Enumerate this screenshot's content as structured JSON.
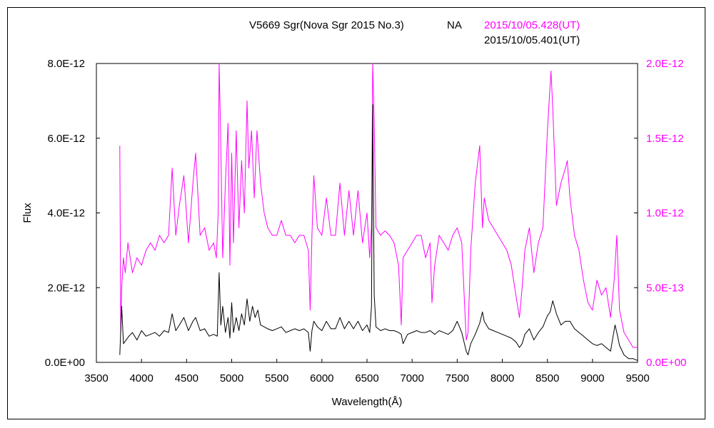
{
  "chart_data": {
    "type": "line",
    "title": "V5669 Sgr(Nova Sgr 2015 No.3)",
    "observer": "NA",
    "xlabel": "Wavelength(Å)",
    "ylabel": "Flux",
    "xlim": [
      3500,
      9500
    ],
    "ylim_left": [
      0,
      8e-12
    ],
    "ylim_right": [
      0,
      2e-12
    ],
    "x_ticks": [
      "3500",
      "4000",
      "4500",
      "5000",
      "5500",
      "6000",
      "6500",
      "7000",
      "7500",
      "8000",
      "8500",
      "9000",
      "9500"
    ],
    "y_ticks_left": [
      "0.0E+00",
      "2.0E-12",
      "4.0E-12",
      "6.0E-12",
      "8.0E-12"
    ],
    "y_ticks_right": [
      "0.0E+00",
      "5.0E-13",
      "1.0E-12",
      "1.5E-12",
      "2.0E-12"
    ],
    "grid": false,
    "colors": {
      "black": "#000000",
      "magenta": "#ff00ff"
    },
    "series": [
      {
        "name": "2015/10/05.428(UT)",
        "axis": "right",
        "color": "#ff00ff",
        "x": [
          3760,
          3770,
          3780,
          3800,
          3820,
          3850,
          3900,
          3950,
          4000,
          4050,
          4100,
          4150,
          4200,
          4250,
          4300,
          4340,
          4380,
          4420,
          4470,
          4520,
          4570,
          4600,
          4650,
          4700,
          4750,
          4800,
          4830,
          4850,
          4861,
          4875,
          4900,
          4930,
          4960,
          4980,
          5000,
          5020,
          5050,
          5080,
          5110,
          5140,
          5170,
          5190,
          5220,
          5250,
          5280,
          5320,
          5360,
          5400,
          5450,
          5500,
          5550,
          5600,
          5650,
          5700,
          5750,
          5800,
          5850,
          5870,
          5890,
          5910,
          5950,
          6000,
          6050,
          6100,
          6150,
          6200,
          6250,
          6300,
          6350,
          6400,
          6450,
          6500,
          6530,
          6550,
          6563,
          6580,
          6600,
          6650,
          6700,
          6750,
          6800,
          6850,
          6880,
          6900,
          6950,
          7000,
          7050,
          7100,
          7150,
          7200,
          7220,
          7250,
          7300,
          7350,
          7400,
          7450,
          7500,
          7550,
          7600,
          7620,
          7650,
          7700,
          7750,
          7780,
          7800,
          7850,
          7900,
          7950,
          8000,
          8050,
          8100,
          8150,
          8190,
          8220,
          8250,
          8300,
          8350,
          8400,
          8450,
          8500,
          8520,
          8540,
          8560,
          8600,
          8650,
          8700,
          8720,
          8750,
          8800,
          8850,
          8900,
          8950,
          9000,
          9050,
          9100,
          9150,
          9200,
          9240,
          9270,
          9300,
          9350,
          9400,
          9450,
          9500
        ],
        "y": [
          1.45e-12,
          2e-13,
          5e-13,
          7e-13,
          6e-13,
          8e-13,
          6e-13,
          7e-13,
          6.5e-13,
          7.5e-13,
          8e-13,
          7.5e-13,
          8.5e-13,
          8e-13,
          8.5e-13,
          1.3e-12,
          8.5e-13,
          1.05e-12,
          1.25e-12,
          8e-13,
          1.2e-12,
          1.4e-12,
          8.5e-13,
          9e-13,
          7.5e-13,
          8e-13,
          7e-13,
          1e-12,
          2e-12,
          1.6e-12,
          7e-13,
          1.2e-12,
          1.6e-12,
          6.5e-13,
          1.4e-12,
          8e-13,
          1.55e-12,
          9e-13,
          1.35e-12,
          1e-12,
          1.75e-12,
          1.3e-12,
          1.55e-12,
          1.1e-12,
          1.55e-12,
          1.2e-12,
          1e-12,
          9e-13,
          8.5e-13,
          8.5e-13,
          9.5e-13,
          8.5e-13,
          8.5e-13,
          8e-13,
          8.5e-13,
          8.5e-13,
          7.5e-13,
          3.5e-13,
          8.5e-13,
          1.25e-12,
          9e-13,
          8.5e-13,
          1.1e-12,
          8.5e-13,
          8.5e-13,
          1.2e-12,
          8.5e-13,
          1.15e-12,
          8.5e-13,
          1.15e-12,
          8e-13,
          1e-12,
          7e-13,
          9e-13,
          2e-12,
          1.6e-12,
          9e-13,
          8.5e-13,
          8.8e-13,
          8.5e-13,
          8e-13,
          6.5e-13,
          2.5e-13,
          7e-13,
          7.5e-13,
          8e-13,
          8.5e-13,
          8.5e-13,
          7e-13,
          8e-13,
          4e-13,
          6.5e-13,
          8.5e-13,
          8e-13,
          7.5e-13,
          8.5e-13,
          9e-13,
          8e-13,
          1.5e-13,
          2e-13,
          7.5e-13,
          1.2e-12,
          1.45e-12,
          9e-13,
          1.1e-12,
          9.5e-13,
          9e-13,
          8.5e-13,
          8e-13,
          7.5e-13,
          6.5e-13,
          4.5e-13,
          3e-13,
          5e-13,
          7.5e-13,
          9e-13,
          6e-13,
          8e-13,
          9e-13,
          1.55e-12,
          1.75e-12,
          1.95e-12,
          1.7e-12,
          1.05e-12,
          1.2e-12,
          1.3e-12,
          1.35e-12,
          1.1e-12,
          8.5e-13,
          7.5e-13,
          5.5e-13,
          4e-13,
          3.5e-13,
          5.5e-13,
          4.5e-13,
          5e-13,
          3e-13,
          5.5e-13,
          8.5e-13,
          3.5e-13,
          2e-13,
          1.5e-13,
          1e-13,
          1e-13
        ]
      },
      {
        "name": "2015/10/05.401(UT)",
        "axis": "left",
        "color": "#000000",
        "x": [
          3760,
          3780,
          3800,
          3830,
          3860,
          3900,
          3950,
          4000,
          4050,
          4100,
          4150,
          4200,
          4250,
          4300,
          4340,
          4380,
          4420,
          4470,
          4520,
          4570,
          4600,
          4650,
          4700,
          4750,
          4800,
          4840,
          4861,
          4880,
          4900,
          4930,
          4960,
          4980,
          5000,
          5020,
          5050,
          5080,
          5110,
          5140,
          5170,
          5200,
          5230,
          5260,
          5290,
          5320,
          5360,
          5400,
          5450,
          5500,
          5550,
          5600,
          5650,
          5700,
          5750,
          5800,
          5850,
          5870,
          5890,
          5910,
          5950,
          6000,
          6050,
          6100,
          6150,
          6200,
          6250,
          6300,
          6350,
          6400,
          6450,
          6500,
          6530,
          6550,
          6563,
          6580,
          6600,
          6650,
          6700,
          6750,
          6800,
          6850,
          6880,
          6900,
          6950,
          7000,
          7050,
          7100,
          7150,
          7200,
          7250,
          7300,
          7350,
          7400,
          7450,
          7500,
          7550,
          7600,
          7620,
          7650,
          7700,
          7750,
          7780,
          7800,
          7850,
          7900,
          7950,
          8000,
          8050,
          8100,
          8150,
          8190,
          8220,
          8250,
          8300,
          8350,
          8400,
          8450,
          8500,
          8530,
          8560,
          8600,
          8650,
          8700,
          8750,
          8800,
          8850,
          8900,
          8950,
          9000,
          9050,
          9100,
          9150,
          9200,
          9250,
          9270,
          9300,
          9350,
          9400,
          9450,
          9500
        ],
        "y": [
          2e-13,
          1.5e-12,
          5e-13,
          6e-13,
          7e-13,
          8e-13,
          6e-13,
          8.5e-13,
          7e-13,
          7.5e-13,
          8e-13,
          7e-13,
          8.5e-13,
          8e-13,
          1.3e-12,
          8.5e-13,
          1e-12,
          1.2e-12,
          8.5e-13,
          1.1e-12,
          1.2e-12,
          8.5e-13,
          9e-13,
          7e-13,
          7.5e-13,
          7e-13,
          2.4e-12,
          1e-12,
          1.5e-12,
          8e-13,
          1.2e-12,
          6.5e-13,
          1.6e-12,
          8e-13,
          1.2e-12,
          8.5e-13,
          1.3e-12,
          1e-12,
          1.7e-12,
          1.1e-12,
          1.5e-12,
          1.2e-12,
          1.4e-12,
          1e-12,
          9.5e-13,
          9e-13,
          8.5e-13,
          9e-13,
          9.5e-13,
          8e-13,
          8.5e-13,
          9e-13,
          8.5e-13,
          9e-13,
          8e-13,
          3e-13,
          8.5e-13,
          1.1e-12,
          9.5e-13,
          8.5e-13,
          1.1e-12,
          9e-13,
          9e-13,
          1.2e-12,
          9e-13,
          1.1e-12,
          9e-13,
          1.1e-12,
          8.5e-13,
          1e-12,
          8e-13,
          1.5e-12,
          6.9e-12,
          1.8e-12,
          9.5e-13,
          8.5e-13,
          9e-13,
          8.5e-13,
          8.5e-13,
          8e-13,
          7.5e-13,
          5e-13,
          7.5e-13,
          8e-13,
          8.5e-13,
          8e-13,
          8e-13,
          8.5e-13,
          7.5e-13,
          8.5e-13,
          8e-13,
          7.5e-13,
          8.5e-13,
          1.1e-12,
          8e-13,
          3e-13,
          2e-13,
          5e-13,
          7.5e-13,
          1.05e-12,
          1.35e-12,
          1.1e-12,
          9e-13,
          8.5e-13,
          8e-13,
          7.5e-13,
          7e-13,
          6.5e-13,
          5.5e-13,
          4e-13,
          5e-13,
          7.5e-13,
          9e-13,
          6e-13,
          8e-13,
          9.5e-13,
          1.25e-12,
          1.35e-12,
          1.65e-12,
          1.3e-12,
          1e-12,
          1.1e-12,
          1.1e-12,
          9e-13,
          8e-13,
          7e-13,
          6e-13,
          5e-13,
          4.5e-13,
          5e-13,
          4e-13,
          3e-13,
          1e-12,
          8e-13,
          4.5e-13,
          2e-13,
          1e-13,
          1e-13,
          5e-14
        ]
      }
    ]
  }
}
